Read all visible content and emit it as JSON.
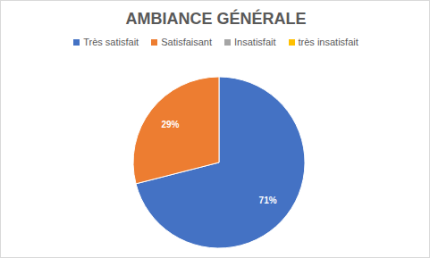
{
  "chart_data": {
    "type": "pie",
    "title": "AMBIANCE GÉNÉRALE",
    "categories": [
      "Très satisfait",
      "Satisfaisant",
      "Insatisfait",
      "très insatisfait"
    ],
    "values": [
      71,
      29,
      0,
      0
    ],
    "colors": [
      "#4472c4",
      "#ed7d31",
      "#a5a5a5",
      "#ffc000"
    ],
    "data_labels": true,
    "value_labels": [
      "71%",
      "29%",
      null,
      null
    ],
    "legend": "top"
  }
}
